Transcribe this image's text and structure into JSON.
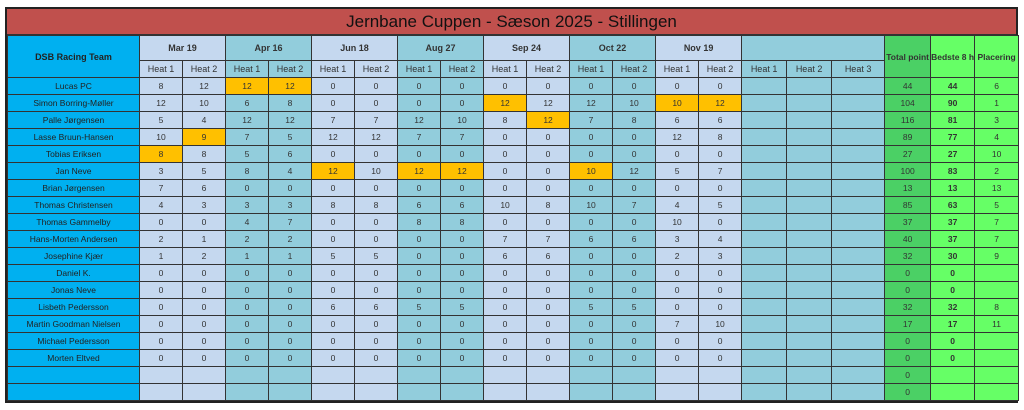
{
  "title": "Jernbane Cuppen - Sæson 2025 - Stillingen",
  "team_header": "DSB Racing Team",
  "dates": [
    "Mar 19",
    "Apr 16",
    "Jun 18",
    "Aug 27",
    "Sep 24",
    "Oct 22",
    "Nov 19",
    ""
  ],
  "heat_labels": [
    "Heat 1",
    "Heat 2",
    "Heat 3"
  ],
  "summary_headers": {
    "total": "Total point",
    "best": "Bedste 8 h",
    "place": "Placering"
  },
  "colors": {
    "title": "#c0504d",
    "name": "#00b0f0",
    "light": "#c5d8ef",
    "teal": "#92cddc",
    "highlight": "#ffc000",
    "total": "#4bd065",
    "green": "#66ff66"
  },
  "rows": [
    {
      "name": "Lucas PC",
      "heats": [
        8,
        12,
        12,
        12,
        0,
        0,
        0,
        0,
        0,
        0,
        0,
        0,
        0,
        0
      ],
      "hl": [
        2,
        3
      ],
      "total": 44,
      "best": 44,
      "place": 6
    },
    {
      "name": "Simon Borring-Møller",
      "heats": [
        12,
        10,
        6,
        8,
        0,
        0,
        0,
        0,
        12,
        12,
        12,
        10,
        10,
        12
      ],
      "hl": [
        8,
        12,
        13
      ],
      "total": 104,
      "best": 90,
      "place": 1
    },
    {
      "name": "Palle Jørgensen",
      "heats": [
        5,
        4,
        12,
        12,
        7,
        7,
        12,
        10,
        8,
        12,
        7,
        8,
        6,
        6
      ],
      "hl": [
        9
      ],
      "total": 116,
      "best": 81,
      "place": 3
    },
    {
      "name": "Lasse Bruun-Hansen",
      "heats": [
        10,
        9,
        7,
        5,
        12,
        12,
        7,
        7,
        0,
        0,
        0,
        0,
        12,
        8
      ],
      "hl": [
        1
      ],
      "total": 89,
      "best": 77,
      "place": 4
    },
    {
      "name": "Tobias Eriksen",
      "heats": [
        8,
        8,
        5,
        6,
        0,
        0,
        0,
        0,
        0,
        0,
        0,
        0,
        0,
        0
      ],
      "hl": [
        0
      ],
      "total": 27,
      "best": 27,
      "place": 10
    },
    {
      "name": "Jan Neve",
      "heats": [
        3,
        5,
        8,
        4,
        12,
        10,
        12,
        12,
        0,
        0,
        10,
        12,
        5,
        7
      ],
      "hl": [
        4,
        6,
        7,
        10
      ],
      "total": 100,
      "best": 83,
      "place": 2
    },
    {
      "name": "Brian Jørgensen",
      "heats": [
        7,
        6,
        0,
        0,
        0,
        0,
        0,
        0,
        0,
        0,
        0,
        0,
        0,
        0
      ],
      "hl": [],
      "total": 13,
      "best": 13,
      "place": 13
    },
    {
      "name": "Thomas Christensen",
      "heats": [
        4,
        3,
        3,
        3,
        8,
        8,
        6,
        6,
        10,
        8,
        10,
        7,
        4,
        5
      ],
      "hl": [],
      "total": 85,
      "best": 63,
      "place": 5
    },
    {
      "name": "Thomas Gammelby",
      "heats": [
        0,
        0,
        4,
        7,
        0,
        0,
        8,
        8,
        0,
        0,
        0,
        0,
        10,
        0
      ],
      "hl": [],
      "total": 37,
      "best": 37,
      "place": 7
    },
    {
      "name": "Hans-Morten Andersen",
      "heats": [
        2,
        1,
        2,
        2,
        0,
        0,
        0,
        0,
        7,
        7,
        6,
        6,
        3,
        4
      ],
      "hl": [],
      "total": 40,
      "best": 37,
      "place": 7
    },
    {
      "name": "Josephine Kjær",
      "heats": [
        1,
        2,
        1,
        1,
        5,
        5,
        0,
        0,
        6,
        6,
        0,
        0,
        2,
        3
      ],
      "hl": [],
      "total": 32,
      "best": 30,
      "place": 9
    },
    {
      "name": "Daniel K.",
      "heats": [
        0,
        0,
        0,
        0,
        0,
        0,
        0,
        0,
        0,
        0,
        0,
        0,
        0,
        0
      ],
      "hl": [],
      "total": 0,
      "best": 0,
      "place": ""
    },
    {
      "name": "Jonas Neve",
      "heats": [
        0,
        0,
        0,
        0,
        0,
        0,
        0,
        0,
        0,
        0,
        0,
        0,
        0,
        0
      ],
      "hl": [],
      "total": 0,
      "best": 0,
      "place": ""
    },
    {
      "name": "Lisbeth Pedersson",
      "heats": [
        0,
        0,
        0,
        0,
        6,
        6,
        5,
        5,
        0,
        0,
        5,
        5,
        0,
        0
      ],
      "hl": [],
      "total": 32,
      "best": 32,
      "place": 8
    },
    {
      "name": "Martin Goodman Nielsen",
      "heats": [
        0,
        0,
        0,
        0,
        0,
        0,
        0,
        0,
        0,
        0,
        0,
        0,
        7,
        10
      ],
      "hl": [],
      "total": 17,
      "best": 17,
      "place": 11
    },
    {
      "name": "Michael Pedersson",
      "heats": [
        0,
        0,
        0,
        0,
        0,
        0,
        0,
        0,
        0,
        0,
        0,
        0,
        0,
        0
      ],
      "hl": [],
      "total": 0,
      "best": 0,
      "place": ""
    },
    {
      "name": "Morten Eltved",
      "heats": [
        0,
        0,
        0,
        0,
        0,
        0,
        0,
        0,
        0,
        0,
        0,
        0,
        0,
        0
      ],
      "hl": [],
      "total": 0,
      "best": 0,
      "place": ""
    },
    {
      "name": "",
      "heats": [
        "",
        "",
        "",
        "",
        "",
        "",
        "",
        "",
        "",
        "",
        "",
        "",
        "",
        ""
      ],
      "hl": [],
      "total": 0,
      "best": "",
      "place": ""
    },
    {
      "name": "",
      "heats": [
        "",
        "",
        "",
        "",
        "",
        "",
        "",
        "",
        "",
        "",
        "",
        "",
        "",
        ""
      ],
      "hl": [],
      "total": 0,
      "best": "",
      "place": ""
    }
  ]
}
